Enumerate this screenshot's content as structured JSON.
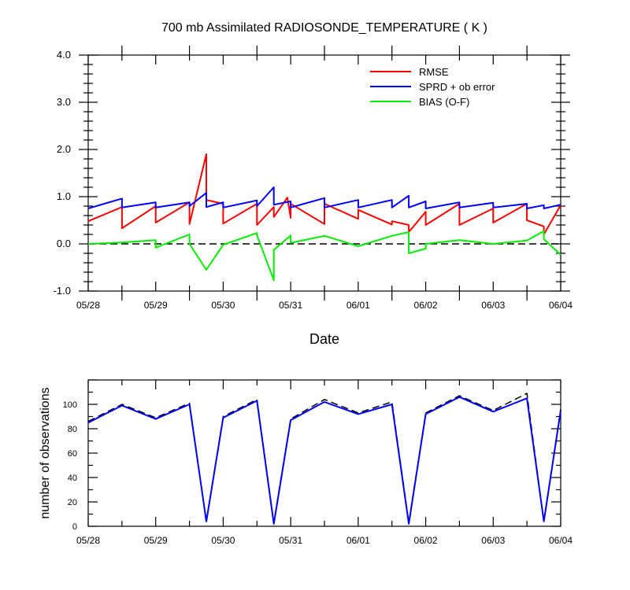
{
  "chart_data": [
    {
      "type": "line",
      "title": "700 mb Assimilated RADIOSONDE_TEMPERATURE ( K )",
      "xlabel": "Date",
      "ylabel": "",
      "x_tick_labels": [
        "05/28",
        "05/29",
        "05/30",
        "05/31",
        "06/01",
        "06/02",
        "06/03",
        "06/04"
      ],
      "x_range_days": [
        0,
        7
      ],
      "ylim": [
        -1.0,
        4.0
      ],
      "y_tick_labels": [
        "4.0",
        "3.0",
        "2.0",
        "1.0",
        "0.0",
        "-1.0"
      ],
      "legend_position": "top-right",
      "reference_line": {
        "y": 0.0,
        "style": "dashed",
        "color": "#000000"
      },
      "series": [
        {
          "name": "RMSE",
          "color": "#ff0000",
          "x": [
            0,
            0.5,
            0.5,
            1,
            1,
            1.5,
            1.5,
            1.75,
            1.75,
            2,
            2,
            2.5,
            2.5,
            2.75,
            2.75,
            2.95,
            3,
            3,
            3.5,
            3.5,
            4,
            4,
            4.5,
            4.5,
            4.75,
            4.75,
            5,
            5,
            5.5,
            5.5,
            6,
            6,
            6.5,
            6.5,
            6.75,
            6.75,
            7
          ],
          "values": [
            0.48,
            0.78,
            0.33,
            0.8,
            0.45,
            0.88,
            0.42,
            1.9,
            0.93,
            0.85,
            0.43,
            0.85,
            0.4,
            0.78,
            0.57,
            0.98,
            0.55,
            0.85,
            0.42,
            0.85,
            0.53,
            0.72,
            0.41,
            0.48,
            0.4,
            0.25,
            0.68,
            0.4,
            0.85,
            0.4,
            0.75,
            0.45,
            0.85,
            0.5,
            0.37,
            0.2,
            0.82
          ]
        },
        {
          "name": "SPRD + ob error",
          "color": "#0000ff",
          "x": [
            0,
            0.5,
            0.5,
            1,
            1,
            1.5,
            1.5,
            1.75,
            1.75,
            2,
            2,
            2.5,
            2.5,
            2.75,
            2.75,
            3,
            3,
            3.5,
            3.5,
            4,
            4,
            4.5,
            4.5,
            4.75,
            4.75,
            5,
            5,
            5.5,
            5.5,
            6,
            6,
            6.5,
            6.5,
            6.75,
            6.75,
            7
          ],
          "values": [
            0.75,
            0.96,
            0.77,
            0.88,
            0.77,
            0.88,
            0.8,
            1.08,
            0.78,
            0.88,
            0.77,
            0.92,
            0.8,
            1.2,
            0.83,
            0.9,
            0.77,
            0.97,
            0.77,
            0.93,
            0.77,
            0.93,
            0.77,
            1.02,
            0.77,
            0.9,
            0.75,
            0.88,
            0.77,
            0.87,
            0.77,
            0.85,
            0.75,
            0.82,
            0.75,
            0.83
          ]
        },
        {
          "name": "BIAS (O-F)",
          "color": "#00ee00",
          "x": [
            0,
            0.5,
            1,
            1,
            1.5,
            1.5,
            1.75,
            2,
            2.5,
            2.5,
            2.75,
            2.75,
            3,
            3,
            3.5,
            4,
            4.5,
            4.75,
            4.75,
            5,
            5,
            5.5,
            6,
            6.5,
            6.75,
            6.75,
            7
          ],
          "values": [
            0.0,
            0.03,
            0.08,
            -0.08,
            0.2,
            0.0,
            -0.55,
            -0.02,
            0.23,
            0.18,
            -0.77,
            -0.13,
            0.18,
            0.02,
            0.17,
            -0.05,
            0.17,
            0.25,
            -0.2,
            -0.1,
            0.0,
            0.08,
            0.0,
            0.07,
            0.27,
            0.1,
            -0.23
          ]
        }
      ]
    },
    {
      "type": "line",
      "title": "",
      "xlabel": "",
      "ylabel": "number of observations",
      "x_tick_labels": [
        "05/28",
        "05/29",
        "05/30",
        "05/31",
        "06/01",
        "06/02",
        "06/03",
        "06/04"
      ],
      "x_range_days": [
        0,
        7
      ],
      "ylim": [
        0,
        120
      ],
      "y_tick_labels": [
        "0",
        "20",
        "40",
        "60",
        "80",
        "100"
      ],
      "series": [
        {
          "color": "#000000",
          "style": "dashed",
          "x": [
            0,
            0.5,
            1,
            1.5,
            1.75,
            2,
            2.5,
            2.75,
            3,
            3.5,
            4,
            4.5,
            4.75,
            5,
            5.5,
            6,
            6.5,
            6.75,
            7
          ],
          "values": [
            86,
            100,
            89,
            101,
            4,
            90,
            104,
            3,
            88,
            104,
            93,
            102,
            3,
            93,
            107,
            95,
            109,
            4,
            96
          ]
        },
        {
          "color": "#0000ff",
          "style": "solid",
          "x": [
            0,
            0.5,
            1,
            1.5,
            1.75,
            2,
            2.5,
            2.75,
            3,
            3.5,
            4,
            4.5,
            4.75,
            5,
            5.5,
            6,
            6.5,
            6.75,
            7
          ],
          "values": [
            85,
            99,
            88,
            100,
            4,
            89,
            103,
            2,
            87,
            102,
            92,
            100,
            2,
            92,
            106,
            94,
            105,
            4,
            95
          ]
        }
      ]
    }
  ]
}
